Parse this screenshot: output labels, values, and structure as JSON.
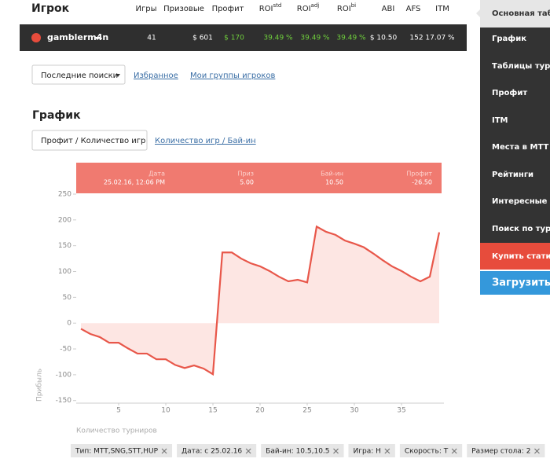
{
  "header": {
    "title": "Игрок",
    "columns": [
      "Игры",
      "Призовые",
      "Профит",
      {
        "base": "ROI",
        "sup": "std"
      },
      {
        "base": "ROI",
        "sup": "adj"
      },
      {
        "base": "ROI",
        "sup": "bi"
      },
      "ABI",
      "AFS",
      "ITM"
    ]
  },
  "player_row": {
    "name": "gamblerm4n",
    "values": [
      "41",
      "$ 601",
      "$ 170",
      "39.49 %",
      "39.49 %",
      "39.49 %",
      "$ 10.50",
      "152",
      "17.07 %"
    ]
  },
  "nav": {
    "recent": "Последние поиски",
    "favorites": "Избранное",
    "groups": "Мои группы игроков"
  },
  "section_title": "График",
  "chart_tabs": [
    "Профит / Количество игр",
    "Количество игр / Бай-ин"
  ],
  "tooltip": {
    "labels": [
      "Дата",
      "Приз",
      "Бай-ин",
      "Профит"
    ],
    "values": [
      "25.02.16, 12:06 PM",
      "5.00",
      "10.50",
      "-26.50"
    ]
  },
  "chart_data": {
    "type": "line",
    "x_label": "Количество турниров",
    "y_label": "Прибыль",
    "x": [
      1,
      2,
      3,
      4,
      5,
      6,
      7,
      8,
      9,
      10,
      11,
      12,
      13,
      14,
      15,
      16,
      17,
      18,
      19,
      20,
      21,
      22,
      23,
      24,
      25,
      26,
      27,
      28,
      29,
      30,
      31,
      32,
      33,
      34,
      35,
      36,
      37,
      38,
      39
    ],
    "series": [
      {
        "color": "#e8574a",
        "fill_color": "#fde6e3",
        "values": [
          -11,
          -21,
          -27,
          -38,
          -38,
          -49,
          -59,
          -59,
          -70,
          -70,
          -81,
          -87,
          -82,
          -88,
          -99,
          137,
          137,
          125,
          116,
          110,
          101,
          90,
          81,
          84,
          79,
          187,
          177,
          171,
          160,
          154,
          147,
          135,
          122,
          110,
          101,
          90,
          81,
          90,
          176
        ]
      }
    ],
    "xlim": [
      0.5,
      39.5
    ],
    "ylim": [
      -155,
      250
    ],
    "xticks": [
      5,
      10,
      15,
      20,
      25,
      30,
      35
    ],
    "yticks": [
      -150,
      -100,
      -50,
      0,
      50,
      100,
      150,
      200,
      250
    ]
  },
  "filters": [
    "Тип: MTT,SNG,STT,HUP",
    "Дата: с 25.02.16",
    "Бай-ин: 10.5,10.5",
    "Игра: H",
    "Скорость: T",
    "Размер стола: 2"
  ],
  "sidebar": {
    "items": [
      "Основная табл",
      "График",
      "Таблицы турни",
      "Профит",
      "ITM",
      "Места в MTT /",
      "Рейтинги",
      "Интересные ф",
      "Поиск по турни"
    ],
    "buy": "Купить статист",
    "upload": "Загрузить Н"
  }
}
